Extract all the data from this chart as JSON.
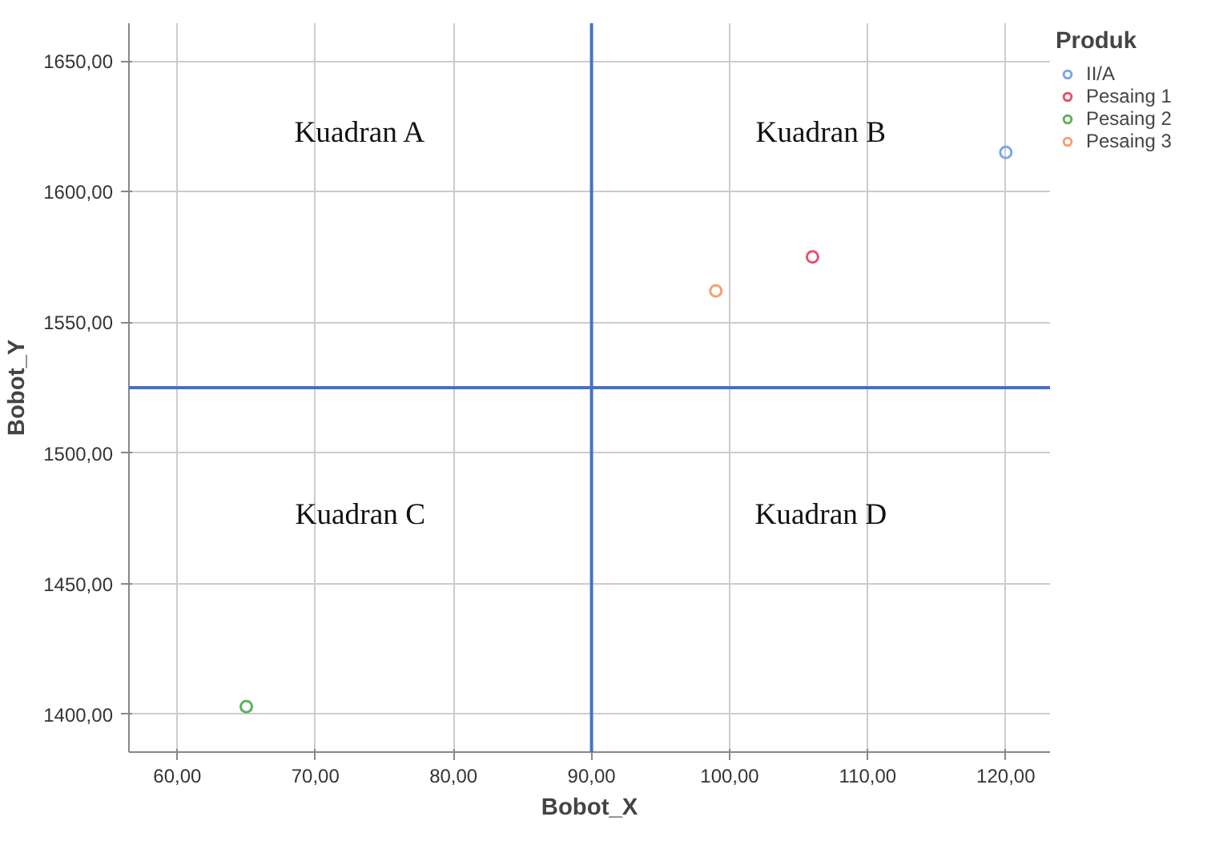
{
  "chart_data": {
    "type": "scatter",
    "xlabel": "Bobot_X",
    "ylabel": "Bobot_Y",
    "legend_title": "Produk",
    "legend": "right",
    "grid": true,
    "marker": "circle",
    "xlim": [
      56.5,
      123.2
    ],
    "ylim": [
      1385.6,
      1664.4
    ],
    "xticks": [
      {
        "value": 60,
        "label": "60,00"
      },
      {
        "value": 70,
        "label": "70,00"
      },
      {
        "value": 80,
        "label": "80,00"
      },
      {
        "value": 90,
        "label": "90,00"
      },
      {
        "value": 100,
        "label": "100,00"
      },
      {
        "value": 110,
        "label": "110,00"
      },
      {
        "value": 120,
        "label": "120,00"
      }
    ],
    "yticks": [
      {
        "value": 1400,
        "label": "1400,00"
      },
      {
        "value": 1450,
        "label": "1450,00"
      },
      {
        "value": 1500,
        "label": "1500,00"
      },
      {
        "value": 1550,
        "label": "1550,00"
      },
      {
        "value": 1600,
        "label": "1600,00"
      },
      {
        "value": 1650,
        "label": "1650,00"
      }
    ],
    "series": [
      {
        "name": "II/A",
        "color": "#7aa7e8",
        "x": [
          120
        ],
        "values": [
          1615
        ]
      },
      {
        "name": "Pesaing 1",
        "color": "#e8506e",
        "x": [
          106
        ],
        "values": [
          1575
        ]
      },
      {
        "name": "Pesaing 2",
        "color": "#5bb25b",
        "x": [
          65
        ],
        "values": [
          1403
        ]
      },
      {
        "name": "Pesaing 3",
        "color": "#f5a070",
        "x": [
          99
        ],
        "values": [
          1562
        ]
      }
    ],
    "ref_lines": [
      {
        "axis": "x",
        "value": 90,
        "color": "#4472c4"
      },
      {
        "axis": "y",
        "value": 1525,
        "color": "#4472c4"
      }
    ],
    "annotations": [
      "Kuadran A",
      "Kuadran B",
      "Kuadran C",
      "Kuadran D"
    ]
  }
}
